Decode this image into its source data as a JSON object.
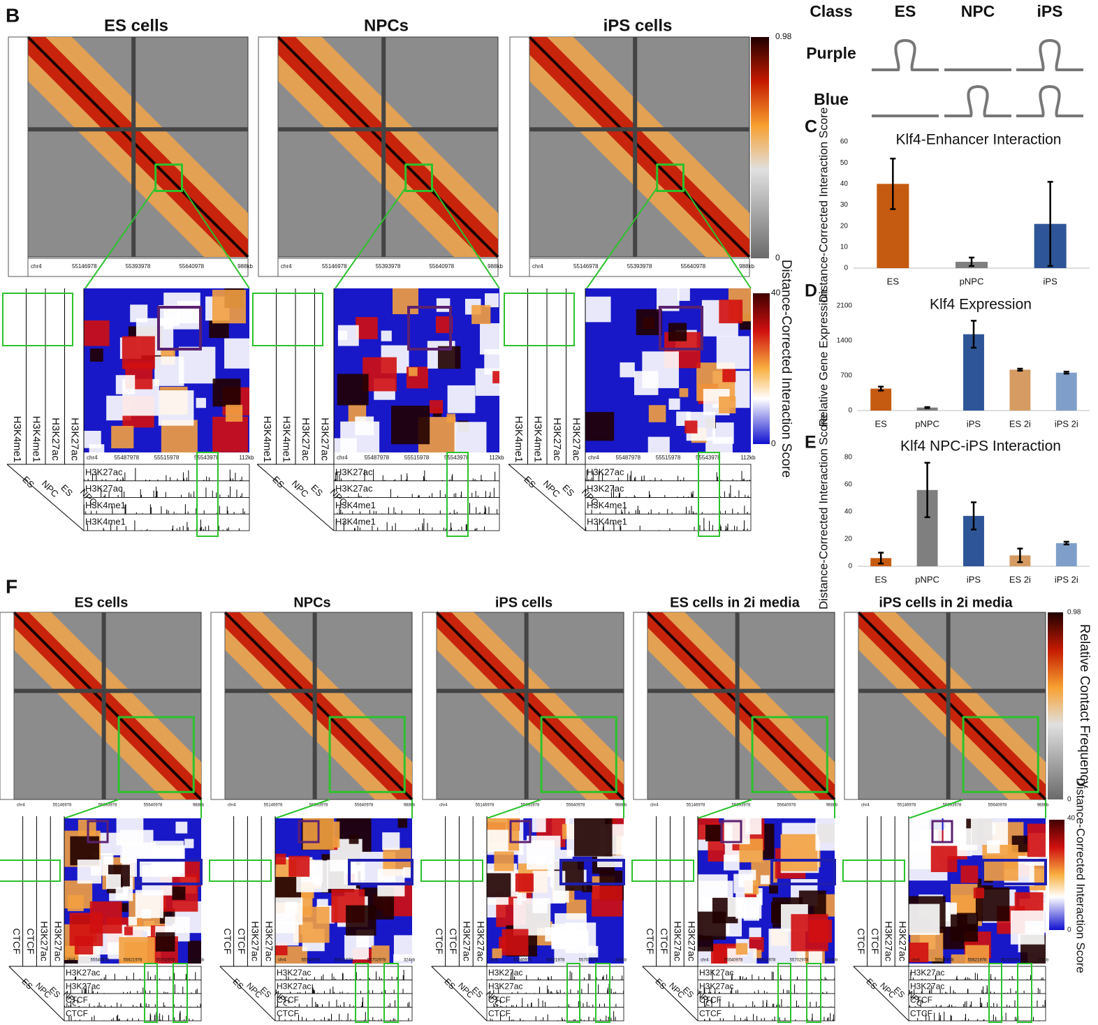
{
  "chart_data": [
    {
      "type": "bar",
      "panel": "C",
      "title": "Klf4-Enhancer Interaction",
      "title_color": "#5b2170",
      "ylabel": "Distance-Corrected Interaction Score",
      "categories": [
        "ES",
        "pNPC",
        "iPS"
      ],
      "values": [
        40,
        3,
        21
      ],
      "errors": [
        12,
        2,
        20
      ],
      "colors": [
        "#c55a11",
        "#7f7f7f",
        "#2e5597"
      ],
      "ylim": [
        0,
        60
      ],
      "yticks": [
        0,
        10,
        20,
        30,
        40,
        50,
        60
      ]
    },
    {
      "type": "bar",
      "panel": "D",
      "title": "Klf4 Expression",
      "title_color": "#222222",
      "ylabel": "Relative Gene Expression",
      "categories": [
        "ES",
        "pNPC",
        "iPS",
        "ES 2i",
        "iPS 2i"
      ],
      "values": [
        440,
        60,
        1530,
        820,
        760
      ],
      "errors": [
        40,
        10,
        270,
        20,
        20
      ],
      "colors": [
        "#c55a11",
        "#7f7f7f",
        "#2e5597",
        "#d59b63",
        "#7f9fca"
      ],
      "ylim": [
        0,
        2100
      ],
      "yticks": [
        0,
        700,
        1400,
        2100
      ]
    },
    {
      "type": "bar",
      "panel": "E",
      "title": "Klf4 NPC-iPS Interaction",
      "title_color": "#1f3fd6",
      "ylabel": "Distance-Corrected Interaction Score",
      "categories": [
        "ES",
        "pNPC",
        "iPS",
        "ES 2i",
        "iPS 2i"
      ],
      "values": [
        6,
        56,
        37,
        8,
        17
      ],
      "errors": [
        4,
        20,
        10,
        5,
        1
      ],
      "colors": [
        "#c55a11",
        "#7f7f7f",
        "#2e5597",
        "#d59b63",
        "#7f9fca"
      ],
      "ylim": [
        0,
        80
      ],
      "yticks": [
        0,
        20,
        40,
        60,
        80
      ]
    }
  ],
  "panel_b": {
    "letter": "B",
    "titles": [
      "ES cells",
      "NPCs",
      "iPS cells"
    ],
    "contact_scale": {
      "max": 0.98,
      "min": 0
    },
    "score_scale": {
      "max": 40,
      "min": 0,
      "label": "Distance-Corrected Interaction Score"
    },
    "map_axis": [
      "chr4",
      "55146978",
      "55393978",
      "55640978",
      "988kb"
    ],
    "zoom_axis": [
      "chr4",
      "55487978",
      "55515978",
      "55543978",
      "112kb"
    ],
    "side_tracks": [
      "H3K4me1",
      "H3K4me1",
      "H3K27ac",
      "H3K27ac"
    ],
    "cells": [
      "ES",
      "NPC",
      "ES",
      "NPC"
    ],
    "bottom_tracks": [
      "H3K27ac",
      "H3K27ac",
      "H3K4me1",
      "H3K4me1"
    ]
  },
  "classes": {
    "header": [
      "Class",
      "ES",
      "NPC",
      "iPS"
    ],
    "rows": [
      {
        "name": "Purple",
        "color": "#5b2170",
        "loops": [
          true,
          false,
          true
        ]
      },
      {
        "name": "Blue",
        "color": "#1f3fd6",
        "loops": [
          false,
          true,
          true
        ]
      }
    ]
  },
  "panel_f": {
    "letter": "F",
    "titles": [
      "ES cells",
      "NPCs",
      "iPS cells",
      "ES cells in 2i media",
      "iPS cells in 2i media"
    ],
    "contact_scale": {
      "max": 0.98,
      "min": 0,
      "label": "Relative Contact Frequency"
    },
    "score_scale": {
      "max": 40,
      "min": 0,
      "label": "Distance-Corrected Interaction Score"
    },
    "map_axis": [
      "chr4",
      "55146978",
      "55393978",
      "55640978",
      "988kb"
    ],
    "zoom_axis": [
      "chr4",
      "55540978",
      "55621978",
      "55702978",
      "324kb"
    ],
    "side_tracks": [
      "CTCF",
      "CTCF",
      "H3K27ac",
      "H3K27ac"
    ],
    "cells": [
      "ES",
      "NPC",
      "ES",
      "NPC"
    ],
    "bottom_tracks": [
      "H3K27ac",
      "H3K27ac",
      "CTCF",
      "CTCF"
    ]
  }
}
